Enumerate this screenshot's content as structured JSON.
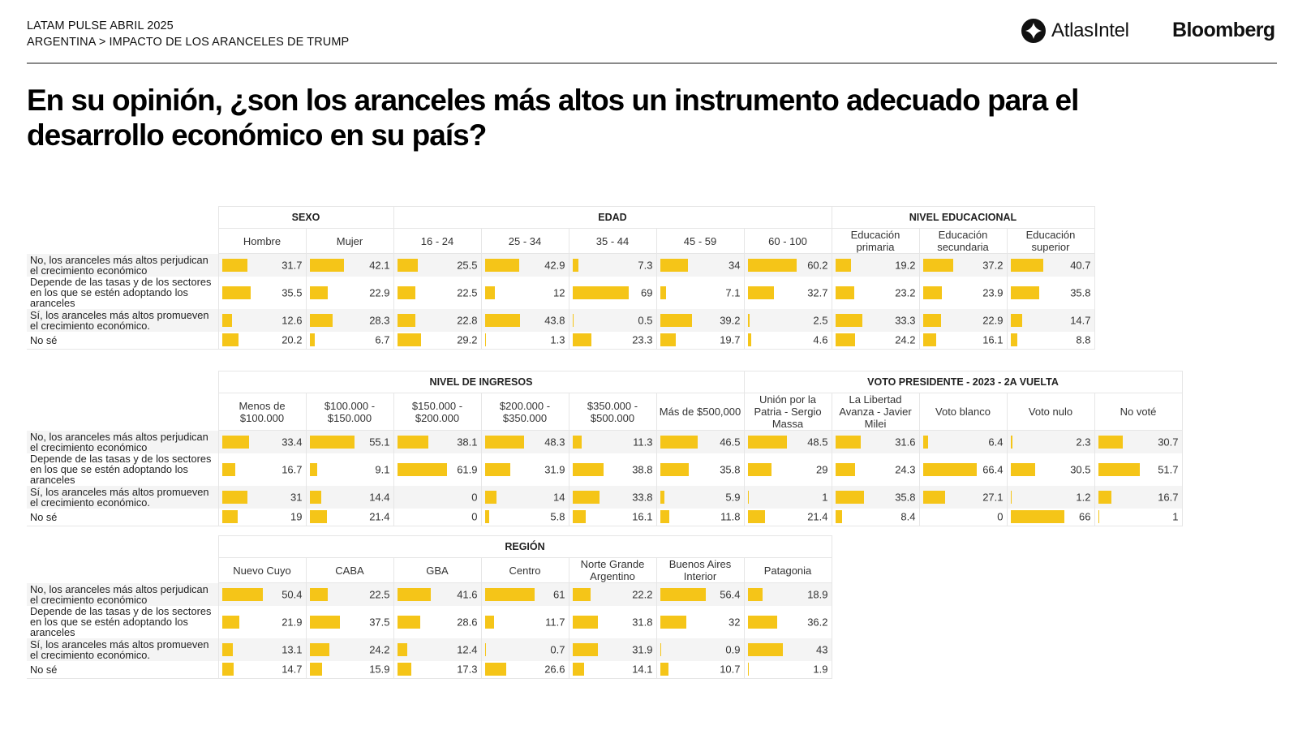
{
  "header": {
    "line1": "LATAM PULSE ABRIL 2025",
    "line2": "ARGENTINA > IMPACTO DE LOS ARANCELES DE TRUMP",
    "logo_atlas": "AtlasIntel",
    "logo_bloomberg": "Bloomberg"
  },
  "title": "En su opinión, ¿son los aranceles más altos un instrumento adecuado para el desarrollo económico en su país?",
  "colors": {
    "bar": "#f5c518",
    "shade": "#f4f4f4",
    "grid": "#e6e6e6"
  },
  "chart_data": {
    "type": "table",
    "title": "En su opinión, ¿son los aranceles más altos un instrumento adecuado para el desarrollo económico en su país?",
    "rows": [
      "No, los aranceles más altos perjudican el crecimiento económico",
      "Depende de las tasas y de los sectores en los que se estén adoptando los aranceles",
      "Sí, los aranceles más altos promueven el crecimiento económico.",
      "No sé"
    ],
    "unit": "%",
    "tables": [
      {
        "groups": [
          {
            "name": "SEXO",
            "columns": [
              {
                "label": "Hombre",
                "values": [
                  31.7,
                  35.5,
                  12.6,
                  20.2
                ]
              },
              {
                "label": "Mujer",
                "values": [
                  42.1,
                  22.9,
                  28.3,
                  6.7
                ]
              }
            ]
          },
          {
            "name": "EDAD",
            "columns": [
              {
                "label": "16 - 24",
                "values": [
                  25.5,
                  22.5,
                  22.8,
                  29.2
                ]
              },
              {
                "label": "25 - 34",
                "values": [
                  42.9,
                  12,
                  43.8,
                  1.3
                ]
              },
              {
                "label": "35 - 44",
                "values": [
                  7.3,
                  69,
                  0.5,
                  23.3
                ]
              },
              {
                "label": "45 - 59",
                "values": [
                  34,
                  7.1,
                  39.2,
                  19.7
                ]
              },
              {
                "label": "60 - 100",
                "values": [
                  60.2,
                  32.7,
                  2.5,
                  4.6
                ]
              }
            ]
          },
          {
            "name": "NIVEL EDUCACIONAL",
            "columns": [
              {
                "label": "Educación primaria",
                "values": [
                  19.2,
                  23.2,
                  33.3,
                  24.2
                ]
              },
              {
                "label": "Educación secundaria",
                "values": [
                  37.2,
                  23.9,
                  22.9,
                  16.1
                ]
              },
              {
                "label": "Educación superior",
                "values": [
                  40.7,
                  35.8,
                  14.7,
                  8.8
                ]
              }
            ]
          }
        ]
      },
      {
        "groups": [
          {
            "name": "NIVEL DE INGRESOS",
            "columns": [
              {
                "label": "Menos de $100.000",
                "values": [
                  33.4,
                  16.7,
                  31,
                  19
                ]
              },
              {
                "label": "$100.000 - $150.000",
                "values": [
                  55.1,
                  9.1,
                  14.4,
                  21.4
                ]
              },
              {
                "label": "$150.000 - $200.000",
                "values": [
                  38.1,
                  61.9,
                  0,
                  0
                ]
              },
              {
                "label": "$200.000 - $350.000",
                "values": [
                  48.3,
                  31.9,
                  14,
                  5.8
                ]
              },
              {
                "label": "$350.000 - $500.000",
                "values": [
                  11.3,
                  38.8,
                  33.8,
                  16.1
                ]
              },
              {
                "label": "Más de $500,000",
                "values": [
                  46.5,
                  35.8,
                  5.9,
                  11.8
                ]
              }
            ]
          },
          {
            "name": "VOTO PRESIDENTE - 2023 - 2A VUELTA",
            "columns": [
              {
                "label": "Unión por la Patria - Sergio Massa",
                "values": [
                  48.5,
                  29,
                  1,
                  21.4
                ]
              },
              {
                "label": "La Libertad Avanza - Javier Milei",
                "values": [
                  31.6,
                  24.3,
                  35.8,
                  8.4
                ]
              },
              {
                "label": "Voto blanco",
                "values": [
                  6.4,
                  66.4,
                  27.1,
                  0
                ]
              },
              {
                "label": "Voto nulo",
                "values": [
                  2.3,
                  30.5,
                  1.2,
                  66
                ]
              },
              {
                "label": "No voté",
                "values": [
                  30.7,
                  51.7,
                  16.7,
                  1
                ]
              }
            ]
          }
        ]
      },
      {
        "groups": [
          {
            "name": "REGIÓN",
            "columns": [
              {
                "label": "Nuevo Cuyo",
                "values": [
                  50.4,
                  21.9,
                  13.1,
                  14.7
                ]
              },
              {
                "label": "CABA",
                "values": [
                  22.5,
                  37.5,
                  24.2,
                  15.9
                ]
              },
              {
                "label": "GBA",
                "values": [
                  41.6,
                  28.6,
                  12.4,
                  17.3
                ]
              },
              {
                "label": "Centro",
                "values": [
                  61,
                  11.7,
                  0.7,
                  26.6
                ]
              },
              {
                "label": "Norte Grande Argentino",
                "values": [
                  22.2,
                  31.8,
                  31.9,
                  14.1
                ]
              },
              {
                "label": "Buenos Aires Interior",
                "values": [
                  56.4,
                  32,
                  0.9,
                  10.7
                ]
              },
              {
                "label": "Patagonia",
                "values": [
                  18.9,
                  36.2,
                  43,
                  1.9
                ]
              }
            ]
          }
        ]
      }
    ]
  }
}
